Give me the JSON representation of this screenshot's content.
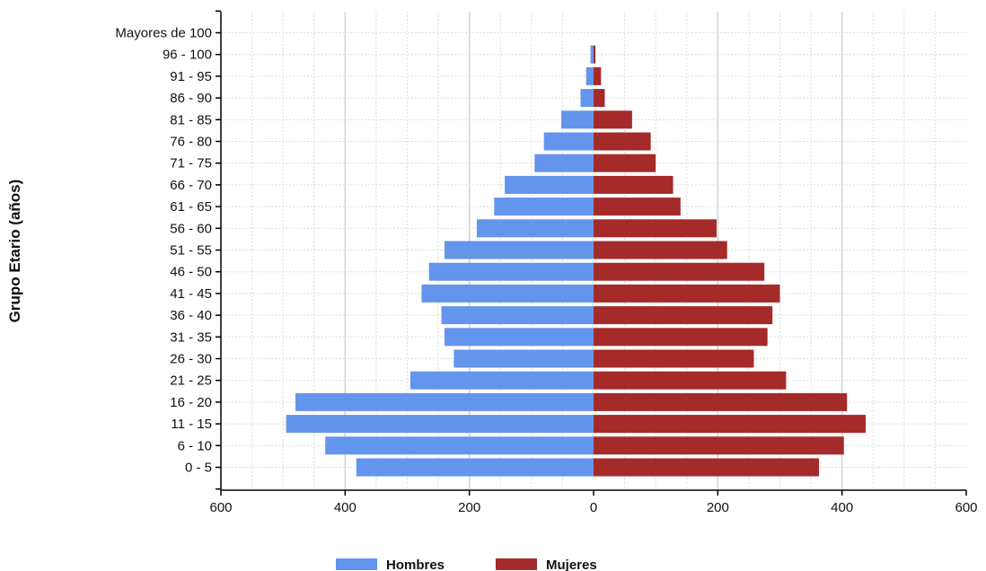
{
  "chart_data": {
    "type": "bar",
    "orientation": "horizontal",
    "subtype": "population-pyramid",
    "ylabel": "Grupo Etario (años)",
    "categories": [
      "0 - 5",
      "6 - 10",
      "11 - 15",
      "16 - 20",
      "21 - 25",
      "26 - 30",
      "31 - 35",
      "36 - 40",
      "41 - 45",
      "46 - 50",
      "51 - 55",
      "56 - 60",
      "61 - 65",
      "66 - 70",
      "71 - 75",
      "76 - 80",
      "81 - 85",
      "86 - 90",
      "91 - 95",
      "96 - 100",
      "Mayores de 100"
    ],
    "series": [
      {
        "name": "Hombres",
        "color": "#6495ED",
        "values": [
          382,
          432,
          495,
          480,
          295,
          225,
          240,
          245,
          277,
          265,
          240,
          188,
          160,
          143,
          95,
          80,
          52,
          21,
          12,
          5,
          0
        ]
      },
      {
        "name": "Mujeres",
        "color": "#A52A2A",
        "values": [
          363,
          403,
          438,
          408,
          310,
          258,
          280,
          288,
          300,
          275,
          215,
          198,
          140,
          128,
          100,
          92,
          62,
          18,
          12,
          3,
          0
        ]
      }
    ],
    "xlim": [
      -600,
      600
    ],
    "xticks": [
      -600,
      -400,
      -200,
      0,
      200,
      400,
      600
    ],
    "xtick_labels": [
      "600",
      "400",
      "200",
      "0",
      "200",
      "400",
      "600"
    ],
    "grid": true,
    "legend_position": "bottom-center"
  }
}
